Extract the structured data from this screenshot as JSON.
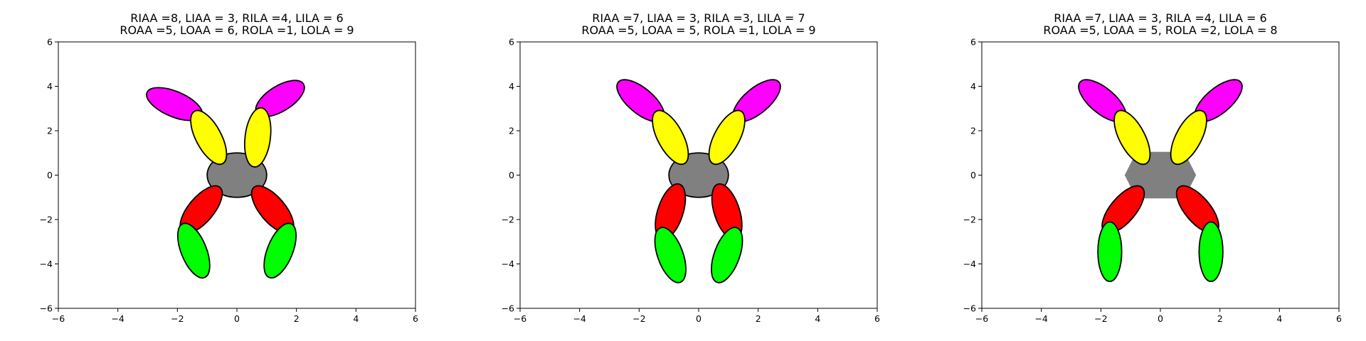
{
  "figure": {
    "panels": [
      {
        "title_line1": "RIAA =8, LIAA = 3, RILA =4, LILA = 6",
        "title_line2": "ROAA =5, LOAA = 6, ROLA =1, LOLA = 9",
        "xlim": [
          -6,
          6
        ],
        "ylim": [
          -6,
          6
        ],
        "xticks": [
          -6,
          -4,
          -2,
          0,
          2,
          4,
          6
        ],
        "yticks": [
          -6,
          -4,
          -2,
          0,
          2,
          4,
          6
        ],
        "body": {
          "shape": "ellipse",
          "cx": 0,
          "cy": 0,
          "w": 2.0,
          "h": 2.0,
          "color": "#808080"
        },
        "limbs": [
          {
            "cx": -2.1,
            "cy": 3.2,
            "len": 2.0,
            "wid": 0.85,
            "angle": -23,
            "color": "#ff00ff"
          },
          {
            "cx": 1.45,
            "cy": 3.45,
            "len": 1.85,
            "wid": 0.85,
            "angle": 32,
            "color": "#ff00ff"
          },
          {
            "cx": -0.95,
            "cy": 1.7,
            "len": 2.0,
            "wid": 0.85,
            "angle": -62,
            "color": "#ffff00"
          },
          {
            "cx": 0.7,
            "cy": 1.7,
            "len": 2.0,
            "wid": 0.85,
            "angle": 83,
            "color": "#ffff00"
          },
          {
            "cx": -1.2,
            "cy": -1.55,
            "len": 1.95,
            "wid": 0.85,
            "angle": 50,
            "color": "#ff0000"
          },
          {
            "cx": 1.2,
            "cy": -1.55,
            "len": 1.95,
            "wid": 0.85,
            "angle": -50,
            "color": "#ff0000"
          },
          {
            "cx": -1.45,
            "cy": -3.4,
            "len": 1.95,
            "wid": 0.85,
            "angle": -68,
            "color": "#00ff00"
          },
          {
            "cx": 1.45,
            "cy": -3.4,
            "len": 1.95,
            "wid": 0.85,
            "angle": 68,
            "color": "#00ff00"
          }
        ]
      },
      {
        "title_line1": "RIAA =7, LIAA = 3, RILA =3, LILA = 7",
        "title_line2": "ROAA =5, LOAA = 5, ROLA =1, LOLA = 9",
        "xlim": [
          -6,
          6
        ],
        "ylim": [
          -6,
          6
        ],
        "xticks": [
          -6,
          -4,
          -2,
          0,
          2,
          4,
          6
        ],
        "yticks": [
          -6,
          -4,
          -2,
          0,
          2,
          4,
          6
        ],
        "body": {
          "shape": "ellipse",
          "cx": 0,
          "cy": 0,
          "w": 2.0,
          "h": 2.0,
          "color": "#808080"
        },
        "limbs": [
          {
            "cx": -1.95,
            "cy": 3.35,
            "len": 1.95,
            "wid": 0.85,
            "angle": -40,
            "color": "#ff00ff"
          },
          {
            "cx": 1.95,
            "cy": 3.35,
            "len": 1.95,
            "wid": 0.85,
            "angle": 40,
            "color": "#ff00ff"
          },
          {
            "cx": -0.95,
            "cy": 1.7,
            "len": 2.0,
            "wid": 0.85,
            "angle": -62,
            "color": "#ffff00"
          },
          {
            "cx": 0.95,
            "cy": 1.7,
            "len": 2.0,
            "wid": 0.85,
            "angle": 62,
            "color": "#ffff00"
          },
          {
            "cx": -0.95,
            "cy": -1.65,
            "len": 1.95,
            "wid": 0.85,
            "angle": 72,
            "color": "#ff0000"
          },
          {
            "cx": 0.95,
            "cy": -1.65,
            "len": 1.95,
            "wid": 0.85,
            "angle": -72,
            "color": "#ff0000"
          },
          {
            "cx": -0.95,
            "cy": -3.6,
            "len": 1.95,
            "wid": 0.85,
            "angle": -70,
            "color": "#00ff00"
          },
          {
            "cx": 0.95,
            "cy": -3.6,
            "len": 1.95,
            "wid": 0.85,
            "angle": 70,
            "color": "#00ff00"
          }
        ]
      },
      {
        "title_line1": "RIAA =7, LIAA = 3, RILA =4, LILA = 6",
        "title_line2": "ROAA =5, LOAA = 5, ROLA =2, LOLA = 8",
        "xlim": [
          -6,
          6
        ],
        "ylim": [
          -6,
          6
        ],
        "xticks": [
          -6,
          -4,
          -2,
          0,
          2,
          4,
          6
        ],
        "yticks": [
          -6,
          -4,
          -2,
          0,
          2,
          4,
          6
        ],
        "body": {
          "shape": "hexagon",
          "cx": 0,
          "cy": 0,
          "w": 2.4,
          "h": 2.1,
          "color": "#808080"
        },
        "limbs": [
          {
            "cx": -1.95,
            "cy": 3.35,
            "len": 1.95,
            "wid": 0.85,
            "angle": -40,
            "color": "#ff00ff"
          },
          {
            "cx": 1.95,
            "cy": 3.35,
            "len": 1.95,
            "wid": 0.85,
            "angle": 40,
            "color": "#ff00ff"
          },
          {
            "cx": -0.95,
            "cy": 1.7,
            "len": 2.0,
            "wid": 0.85,
            "angle": -62,
            "color": "#ffff00"
          },
          {
            "cx": 0.95,
            "cy": 1.7,
            "len": 2.0,
            "wid": 0.85,
            "angle": 62,
            "color": "#ffff00"
          },
          {
            "cx": -1.25,
            "cy": -1.55,
            "len": 1.95,
            "wid": 0.85,
            "angle": 50,
            "color": "#ff0000"
          },
          {
            "cx": 1.25,
            "cy": -1.55,
            "len": 1.95,
            "wid": 0.85,
            "angle": -50,
            "color": "#ff0000"
          },
          {
            "cx": -1.7,
            "cy": -3.45,
            "len": 2.0,
            "wid": 0.8,
            "angle": 90,
            "color": "#00ff00"
          },
          {
            "cx": 1.7,
            "cy": -3.45,
            "len": 2.0,
            "wid": 0.8,
            "angle": 90,
            "color": "#00ff00"
          }
        ]
      }
    ]
  }
}
